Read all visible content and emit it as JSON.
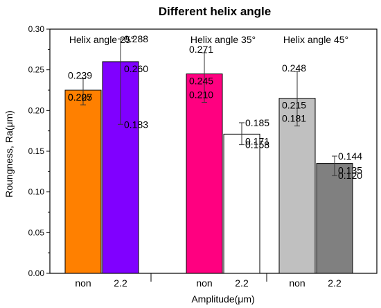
{
  "chart_data": {
    "type": "bar",
    "title": "Different helix angle",
    "xlabel": "Amplitude(μm)",
    "ylabel": "Roungness, Ra(μm)",
    "ylim": [
      0.0,
      0.3
    ],
    "yticks": [
      "0.00",
      "0.05",
      "0.10",
      "0.15",
      "0.20",
      "0.25",
      "0.30"
    ],
    "grid": false,
    "groups": [
      {
        "label": "Helix angle 25°",
        "bars": [
          {
            "category": "non",
            "value": 0.225,
            "err_high": 0.239,
            "err_low": 0.207,
            "color": "#FF8000",
            "labels": {
              "high": "0.239",
              "mean": "0.225",
              "low": "0.207"
            }
          },
          {
            "category": "2.2",
            "value": 0.26,
            "err_high": 0.288,
            "err_low": 0.183,
            "color": "#8000FF",
            "labels": {
              "high": "0.288",
              "mean": "0.260",
              "low": "0.183"
            }
          }
        ]
      },
      {
        "label": "Helix angle 35°",
        "bars": [
          {
            "category": "non",
            "value": 0.245,
            "err_high": 0.271,
            "err_low": 0.21,
            "color": "#FF0080",
            "labels": {
              "high": "0.271",
              "mean": "0.245",
              "low": "0.210"
            }
          },
          {
            "category": "2.2",
            "value": 0.171,
            "err_high": 0.185,
            "err_low": 0.158,
            "color": "#FFFFFF",
            "labels": {
              "high": "0.185",
              "mean": "0.171",
              "low": "0.158"
            }
          }
        ]
      },
      {
        "label": "Helix angle 45°",
        "bars": [
          {
            "category": "non",
            "value": 0.215,
            "err_high": 0.248,
            "err_low": 0.181,
            "color": "#C0C0C0",
            "labels": {
              "high": "0.248",
              "mean": "0.215",
              "low": "0.181"
            }
          },
          {
            "category": "2.2",
            "value": 0.135,
            "err_high": 0.144,
            "err_low": 0.12,
            "color": "#808080",
            "labels": {
              "high": "0.144",
              "mean": "0.135",
              "low": "0.120"
            }
          }
        ]
      }
    ]
  }
}
